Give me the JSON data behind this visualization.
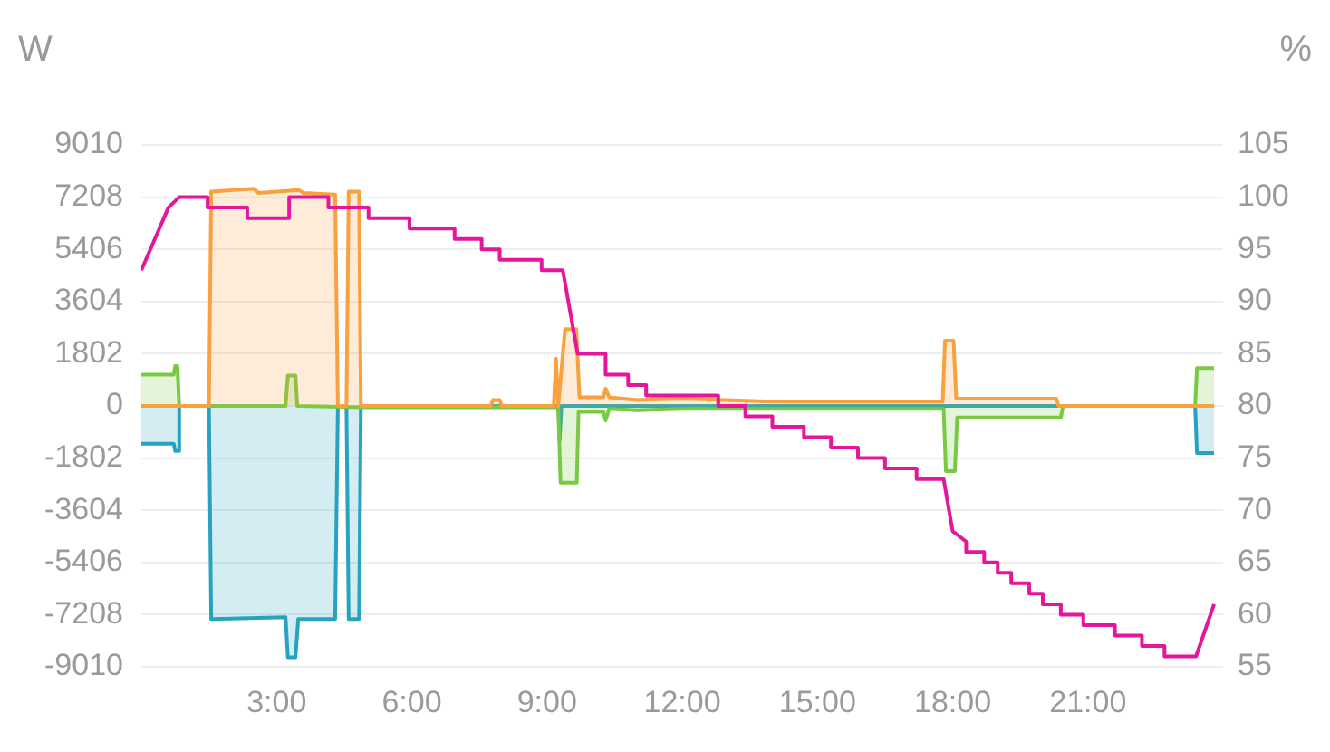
{
  "chart_data": {
    "type": "area",
    "ylabel": "W",
    "y2label": "%",
    "xlim": [
      0,
      24
    ],
    "xticks": [
      {
        "value": 3,
        "label": "3:00"
      },
      {
        "value": 6,
        "label": "6:00"
      },
      {
        "value": 9,
        "label": "9:00"
      },
      {
        "value": 12,
        "label": "12:00"
      },
      {
        "value": 15,
        "label": "15:00"
      },
      {
        "value": 18,
        "label": "18:00"
      },
      {
        "value": 21,
        "label": "21:00"
      }
    ],
    "ylim": [
      -9010,
      9010
    ],
    "yticks": [
      -9010,
      -7208,
      -5406,
      -3604,
      -1802,
      0,
      1802,
      3604,
      5406,
      7208,
      9010
    ],
    "y2lim": [
      55,
      105
    ],
    "y2ticks": [
      55,
      60,
      65,
      70,
      75,
      80,
      85,
      90,
      95,
      100,
      105
    ],
    "grid": "y",
    "legend": false,
    "marker": "none",
    "series": [
      {
        "type": "line",
        "axis": "y2",
        "color": "#e4169b",
        "x": [
          0,
          0.6,
          0.84,
          1.47,
          1.47,
          2.35,
          2.35,
          3.28,
          3.28,
          4.15,
          4.15,
          5.04,
          5.04,
          5.95,
          5.95,
          6.95,
          6.95,
          7.55,
          7.55,
          7.95,
          7.95,
          8.88,
          8.88,
          9.35,
          9.68,
          10.3,
          10.3,
          10.8,
          10.8,
          11.2,
          11.2,
          12.8,
          12.8,
          13.4,
          13.4,
          14,
          14,
          14.7,
          14.7,
          15.3,
          15.3,
          15.9,
          15.9,
          16.5,
          16.5,
          17.2,
          17.2,
          17.8,
          18,
          18.3,
          18.3,
          18.7,
          18.7,
          19,
          19,
          19.3,
          19.3,
          19.7,
          19.7,
          20,
          20,
          20.4,
          20.4,
          20.9,
          20.9,
          21.6,
          21.6,
          22.2,
          22.2,
          22.7,
          22.7,
          23.4,
          23.8
        ],
        "values": [
          93,
          99,
          100,
          100,
          99,
          99,
          98,
          98,
          100,
          100,
          99,
          99,
          98,
          98,
          97,
          97,
          96,
          96,
          95,
          95,
          94,
          94,
          93,
          93,
          85,
          85,
          83,
          83,
          82,
          82,
          81,
          81,
          80,
          80,
          79,
          79,
          78,
          78,
          77,
          77,
          76,
          76,
          75,
          75,
          74,
          74,
          73,
          73,
          68,
          67,
          66,
          66,
          65,
          65,
          64,
          64,
          63,
          63,
          62,
          62,
          61,
          61,
          60,
          60,
          59,
          59,
          58,
          58,
          57,
          57,
          56,
          56,
          61
        ]
      },
      {
        "color": "#f9a03f",
        "x": [
          0,
          1.5,
          1.55,
          2.5,
          2.6,
          3.5,
          3.6,
          4.3,
          4.36,
          4.55,
          4.6,
          4.83,
          4.87,
          7.75,
          7.8,
          7.95,
          8,
          9.15,
          9.2,
          9.25,
          9.4,
          9.65,
          9.72,
          10.25,
          10.3,
          10.38,
          11,
          12,
          14,
          15,
          17.78,
          17.83,
          18.02,
          18.08,
          20.3,
          20.35,
          23.8
        ],
        "values": [
          0,
          0,
          7400,
          7500,
          7350,
          7450,
          7350,
          7300,
          0,
          0,
          7400,
          7400,
          0,
          0,
          200,
          200,
          0,
          0,
          1630,
          0,
          2650,
          2650,
          300,
          300,
          600,
          300,
          200,
          250,
          150,
          150,
          150,
          2250,
          2250,
          250,
          250,
          0,
          0
        ]
      },
      {
        "color": "#7ac943",
        "x": [
          0,
          0.72,
          0.75,
          0.8,
          0.84,
          3.2,
          3.25,
          3.42,
          3.46,
          5,
          9.25,
          9.3,
          9.66,
          9.7,
          10.25,
          10.3,
          10.38,
          11,
          12,
          15,
          17.8,
          17.85,
          18.05,
          18.1,
          20.4,
          20.45,
          23.38,
          23.42,
          23.8
        ],
        "values": [
          1080,
          1080,
          1380,
          1380,
          0,
          0,
          1050,
          1050,
          0,
          -50,
          -50,
          -2650,
          -2650,
          -200,
          -200,
          -500,
          -100,
          -150,
          -100,
          -100,
          -100,
          -2250,
          -2250,
          -400,
          -400,
          0,
          0,
          1310,
          1310
        ]
      },
      {
        "color": "#27a3bf",
        "x": [
          0,
          0.72,
          0.75,
          0.82,
          0.84,
          1.5,
          1.55,
          3.2,
          3.25,
          3.42,
          3.48,
          4.3,
          4.36,
          4.55,
          4.6,
          4.83,
          4.87,
          9.25,
          9.28,
          9.32,
          23.38,
          23.42,
          23.8
        ],
        "values": [
          -1310,
          -1310,
          -1560,
          -1560,
          0,
          0,
          -7360,
          -7300,
          -8680,
          -8680,
          -7360,
          -7360,
          0,
          0,
          -7360,
          -7360,
          0,
          0,
          -1200,
          0,
          0,
          -1630,
          -1630
        ]
      }
    ]
  }
}
